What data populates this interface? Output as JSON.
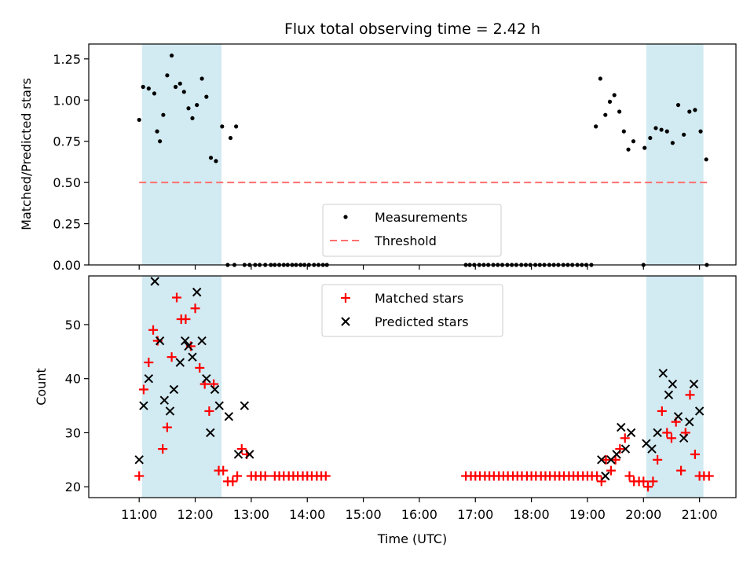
{
  "chart_data": {
    "type": "scatter",
    "title": "Flux total observing time = 2.42 h",
    "xlabel": "Time (UTC)",
    "x_unit": "hours UTC",
    "xlim": [
      10.1,
      21.65
    ],
    "x_ticks": [
      {
        "value": 11,
        "label": "11:00"
      },
      {
        "value": 12,
        "label": "12:00"
      },
      {
        "value": 13,
        "label": "13:00"
      },
      {
        "value": 14,
        "label": "14:00"
      },
      {
        "value": 15,
        "label": "15:00"
      },
      {
        "value": 16,
        "label": "16:00"
      },
      {
        "value": 17,
        "label": "17:00"
      },
      {
        "value": 18,
        "label": "18:00"
      },
      {
        "value": 19,
        "label": "19:00"
      },
      {
        "value": 20,
        "label": "20:00"
      },
      {
        "value": 21,
        "label": "21:00"
      }
    ],
    "shaded_intervals": [
      [
        11.05,
        12.47
      ],
      [
        20.05,
        21.07
      ]
    ],
    "shade_color": "#add8e6",
    "top_panel": {
      "ylabel": "Matched/Predicted stars",
      "ylim": [
        0,
        1.34
      ],
      "y_ticks": [
        {
          "value": 0,
          "label": "0.00"
        },
        {
          "value": 0.25,
          "label": "0.25"
        },
        {
          "value": 0.5,
          "label": "0.50"
        },
        {
          "value": 0.75,
          "label": "0.75"
        },
        {
          "value": 1.0,
          "label": "1.00"
        },
        {
          "value": 1.25,
          "label": "1.25"
        }
      ],
      "threshold": 0.5,
      "threshold_color": "#ff7070",
      "legend": [
        {
          "label": "Measurements",
          "kind": "dot"
        },
        {
          "label": "Threshold",
          "kind": "dashed-line"
        }
      ],
      "measurements": {
        "x": [
          11.0,
          11.07,
          11.17,
          11.27,
          11.32,
          11.37,
          11.43,
          11.5,
          11.58,
          11.65,
          11.73,
          11.8,
          11.88,
          11.95,
          12.03,
          12.12,
          12.2,
          12.28,
          12.37,
          12.48,
          12.63,
          12.73,
          12.88,
          12.97,
          13.07,
          13.15,
          13.25,
          13.35,
          13.42,
          13.5,
          13.58,
          13.65,
          13.73,
          13.8,
          13.88,
          13.95,
          14.03,
          14.12,
          14.2,
          14.28,
          14.35,
          16.83,
          16.9,
          16.98,
          17.07,
          17.15,
          17.23,
          17.32,
          17.4,
          17.48,
          17.57,
          17.65,
          17.73,
          17.82,
          17.9,
          17.98,
          18.07,
          18.15,
          18.23,
          18.32,
          18.4,
          18.48,
          18.57,
          18.65,
          18.73,
          18.82,
          18.9,
          18.98,
          19.07,
          19.15,
          19.23,
          19.32,
          19.4,
          19.48,
          19.57,
          19.65,
          19.73,
          19.82,
          20.02,
          20.12,
          20.22,
          20.32,
          20.42,
          20.52,
          20.62,
          20.72,
          20.82,
          20.92,
          21.02,
          21.12
        ],
        "y": [
          0.88,
          1.08,
          1.07,
          1.04,
          0.81,
          0.75,
          0.91,
          1.15,
          1.27,
          1.08,
          1.1,
          1.05,
          0.95,
          0.89,
          0.97,
          1.13,
          1.02,
          0.65,
          0.63,
          0.84,
          0.77,
          0.84,
          0.0,
          0.0,
          0.0,
          0.0,
          0.0,
          0.0,
          0.0,
          0.0,
          0.0,
          0.0,
          0.0,
          0.0,
          0.0,
          0.0,
          0.0,
          0.0,
          0.0,
          0.0,
          0.0,
          0.0,
          0.0,
          0.0,
          0.0,
          0.0,
          0.0,
          0.0,
          0.0,
          0.0,
          0.0,
          0.0,
          0.0,
          0.0,
          0.0,
          0.0,
          0.0,
          0.0,
          0.0,
          0.0,
          0.0,
          0.0,
          0.0,
          0.0,
          0.0,
          0.0,
          0.0,
          0.0,
          0.0,
          0.84,
          1.13,
          0.91,
          0.99,
          1.03,
          0.93,
          0.81,
          0.7,
          0.75,
          0.71,
          0.77,
          0.83,
          0.82,
          0.81,
          0.74,
          0.97,
          0.79,
          0.93,
          0.94,
          0.81,
          0.64
        ]
      },
      "zero_points_x_extra": [
        12.58,
        12.7,
        20.0,
        21.13
      ]
    },
    "bottom_panel": {
      "ylabel": "Count",
      "ylim": [
        18,
        59
      ],
      "y_ticks": [
        {
          "value": 20,
          "label": "20"
        },
        {
          "value": 30,
          "label": "30"
        },
        {
          "value": 40,
          "label": "40"
        },
        {
          "value": 50,
          "label": "50"
        }
      ],
      "legend": [
        {
          "label": "Matched stars",
          "kind": "plus",
          "color": "#ff0000"
        },
        {
          "label": "Predicted stars",
          "kind": "x",
          "color": "#000000"
        }
      ],
      "series": [
        {
          "name": "Matched stars",
          "color": "#ff0000",
          "marker": "plus",
          "x": [
            11.0,
            11.08,
            11.17,
            11.25,
            11.33,
            11.42,
            11.5,
            11.58,
            11.67,
            11.75,
            11.83,
            11.92,
            12.0,
            12.08,
            12.17,
            12.25,
            12.33,
            12.42,
            12.5,
            12.58,
            12.67,
            12.75,
            12.83,
            12.92,
            13.0,
            13.08,
            13.17,
            13.25,
            13.42,
            13.5,
            13.58,
            13.67,
            13.75,
            13.83,
            13.92,
            14.0,
            14.08,
            14.17,
            14.25,
            14.33,
            16.83,
            16.92,
            17.0,
            17.08,
            17.17,
            17.25,
            17.33,
            17.42,
            17.5,
            17.58,
            17.67,
            17.75,
            17.83,
            17.92,
            18.0,
            18.08,
            18.17,
            18.25,
            18.33,
            18.42,
            18.5,
            18.58,
            18.67,
            18.75,
            18.83,
            18.92,
            19.0,
            19.08,
            19.17,
            19.25,
            19.33,
            19.42,
            19.5,
            19.58,
            19.67,
            19.75,
            19.83,
            19.92,
            20.0,
            20.08,
            20.17,
            20.25,
            20.33,
            20.42,
            20.5,
            20.58,
            20.67,
            20.75,
            20.83,
            20.92,
            21.0,
            21.08,
            21.17
          ],
          "y": [
            22,
            38,
            43,
            49,
            47,
            27,
            31,
            44,
            55,
            51,
            51,
            46,
            53,
            42,
            39,
            34,
            39,
            23,
            23,
            21,
            21,
            22,
            27,
            26,
            22,
            22,
            22,
            22,
            22,
            22,
            22,
            22,
            22,
            22,
            22,
            22,
            22,
            22,
            22,
            22,
            22,
            22,
            22,
            22,
            22,
            22,
            22,
            22,
            22,
            22,
            22,
            22,
            22,
            22,
            22,
            22,
            22,
            22,
            22,
            22,
            22,
            22,
            22,
            22,
            22,
            22,
            22,
            22,
            22,
            21,
            25,
            23,
            25,
            27,
            29,
            22,
            21,
            21,
            21,
            20,
            21,
            25,
            34,
            30,
            29,
            32,
            23,
            30,
            37,
            26,
            22,
            22,
            22
          ]
        },
        {
          "name": "Predicted stars",
          "color": "#000000",
          "marker": "x",
          "x": [
            11.0,
            11.08,
            11.17,
            11.28,
            11.37,
            11.45,
            11.55,
            11.62,
            11.73,
            11.82,
            11.88,
            11.95,
            12.03,
            12.12,
            12.2,
            12.27,
            12.35,
            12.43,
            12.6,
            12.77,
            12.88,
            12.97,
            19.25,
            19.32,
            19.42,
            19.52,
            19.6,
            19.68,
            19.78,
            20.05,
            20.15,
            20.25,
            20.35,
            20.45,
            20.52,
            20.62,
            20.72,
            20.82,
            20.9,
            21.0
          ],
          "y": [
            25,
            35,
            40,
            58,
            47,
            36,
            34,
            38,
            43,
            47,
            46,
            44,
            56,
            47,
            40,
            30,
            38,
            35,
            33,
            26,
            35,
            26,
            25,
            22,
            25,
            26,
            31,
            27,
            30,
            28,
            27,
            30,
            41,
            37,
            39,
            33,
            29,
            32,
            39,
            34
          ]
        }
      ]
    }
  }
}
